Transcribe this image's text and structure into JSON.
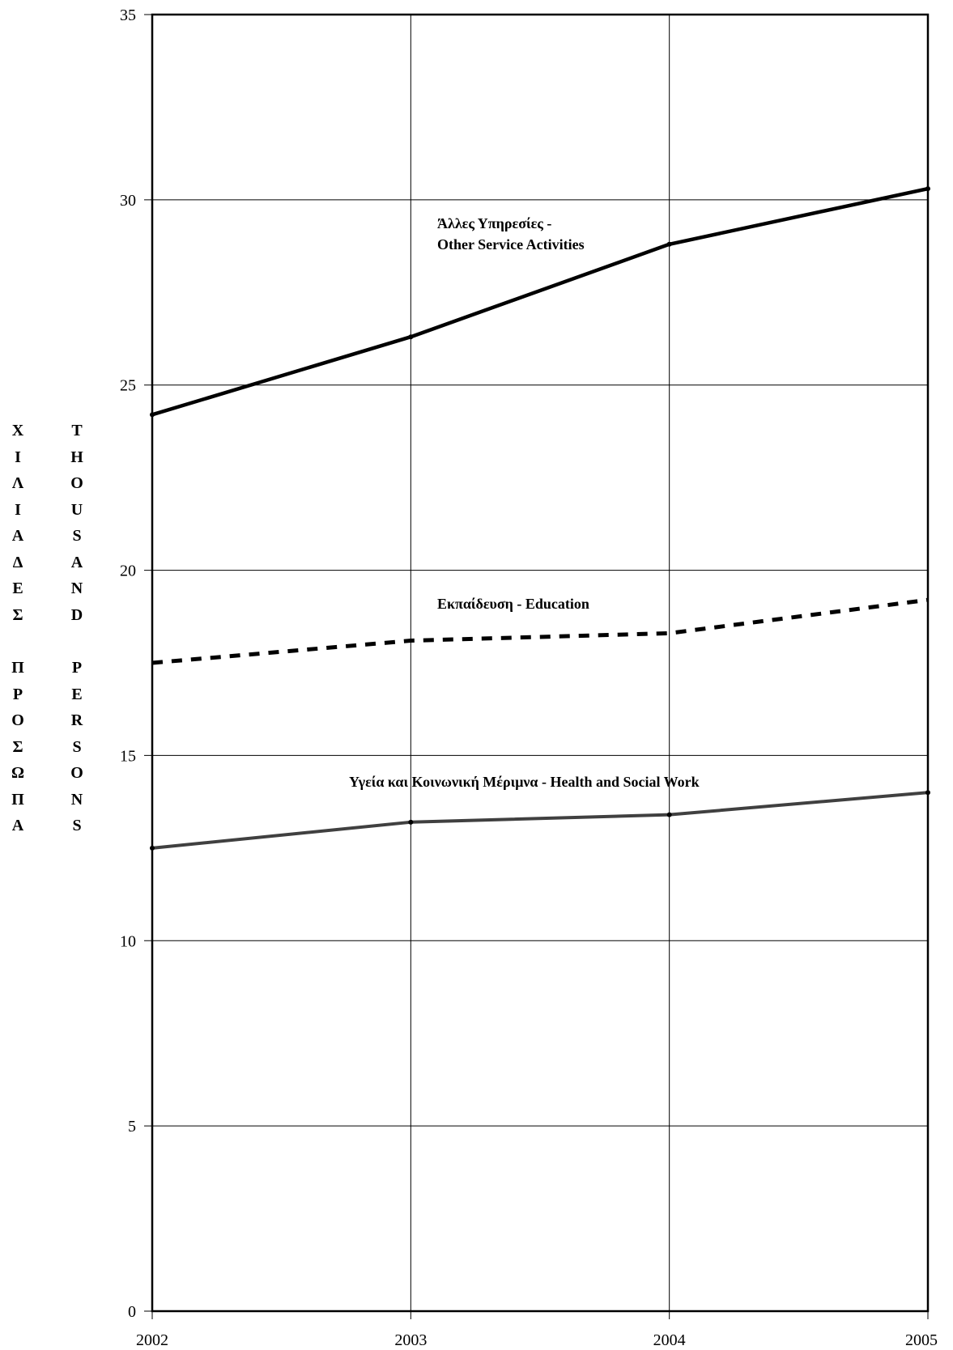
{
  "chart_data": {
    "type": "line",
    "categories": [
      "2002",
      "2003",
      "2004",
      "2005"
    ],
    "ylim": [
      0,
      35
    ],
    "yticks": [
      0,
      5,
      10,
      15,
      20,
      25,
      30,
      35
    ],
    "grid": true,
    "series": [
      {
        "name": "Άλλες Υπηρεσίες - Other Service Activities",
        "label_lines": [
          "Άλλες Υπηρεσίες -",
          "Other Service Activities"
        ],
        "values": [
          24.2,
          26.3,
          28.8,
          30.3
        ],
        "style": "solid-thick",
        "color": "#000000"
      },
      {
        "name": "Εκπαίδευση - Education",
        "label_lines": [
          "Εκπαίδευση - Education"
        ],
        "values": [
          17.5,
          18.1,
          18.3,
          19.2
        ],
        "style": "dashed",
        "color": "#000000"
      },
      {
        "name": "Υγεία και Κοινωνική Μέριμνα - Health and Social Work",
        "label_lines": [
          "Υγεία και  Κοινωνική  Μέριμνα - Health and Social Work"
        ],
        "values": [
          12.5,
          13.2,
          13.4,
          14.0
        ],
        "style": "solid",
        "color": "#404040"
      }
    ],
    "ylabel_greek": [
      "Χ",
      "Ι",
      "Λ",
      "Ι",
      "Α",
      "Δ",
      "Ε",
      "Σ",
      "",
      "Π",
      "Ρ",
      "Ο",
      "Σ",
      "Ω",
      "Π",
      "Α"
    ],
    "ylabel_english": [
      "T",
      "H",
      "O",
      "U",
      "S",
      "A",
      "N",
      "D",
      "",
      "P",
      "E",
      "R",
      "S",
      "O",
      "N",
      "S"
    ]
  }
}
